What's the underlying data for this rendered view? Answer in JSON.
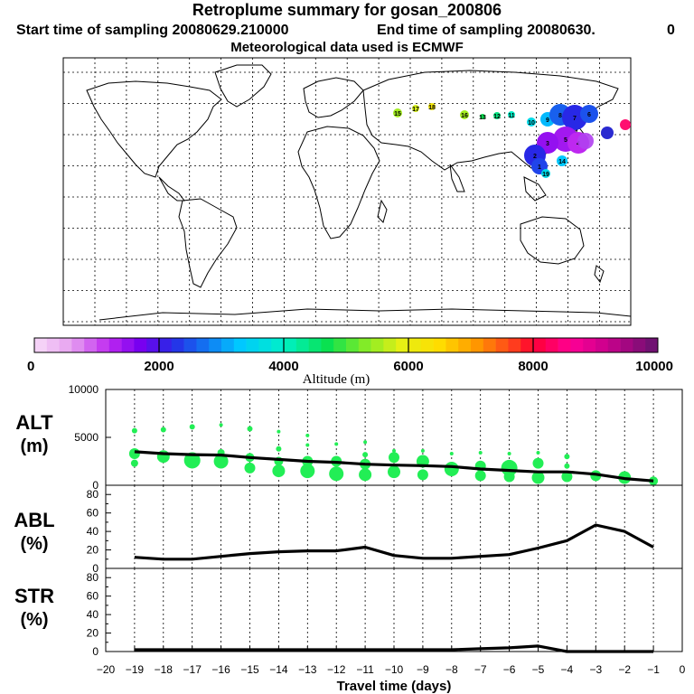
{
  "header": {
    "title": "Retroplume summary for gosan_200806",
    "start": "Start time of sampling 20080629.210000",
    "end": "End time of sampling 20080630.",
    "end_suffix": "0",
    "met": "Meteorological data used is ECMWF"
  },
  "colors": {
    "line": "#000000",
    "bubble": "#22ee55"
  },
  "map": {
    "plume_labels": [
      "15",
      "17",
      "18",
      "16",
      "13",
      "12",
      "11",
      "10",
      "9",
      "8",
      "7",
      "6",
      "5",
      "4",
      "3",
      "2",
      "1",
      "19",
      "14"
    ],
    "colorbar": {
      "label": "Altitude (m)",
      "ticks": [
        "0",
        "2000",
        "4000",
        "6000",
        "8000",
        "10000"
      ],
      "range": [
        0,
        10000
      ],
      "segments": 50
    }
  },
  "chart_data": [
    {
      "type": "line",
      "panel": "ALT",
      "ylabel_line1": "ALT",
      "ylabel_line2": "(m)",
      "ylim": [
        0,
        10000
      ],
      "yticks": [
        "10000",
        "5000",
        "0"
      ],
      "x": [
        -19,
        -18,
        -17,
        -16,
        -15,
        -14,
        -13,
        -12,
        -11,
        -10,
        -9,
        -8,
        -7,
        -6,
        -5,
        -4,
        -3,
        -2,
        -1
      ],
      "series": [
        {
          "name": "mean altitude",
          "values": [
            3500,
            3300,
            3200,
            3150,
            2900,
            2700,
            2500,
            2400,
            2200,
            2100,
            2050,
            1950,
            1700,
            1550,
            1400,
            1400,
            1150,
            700,
            450
          ]
        }
      ],
      "bubbles": [
        {
          "x": -19,
          "y": 5700,
          "s": 3
        },
        {
          "x": -19,
          "y": 3300,
          "s": 6
        },
        {
          "x": -19,
          "y": 2300,
          "s": 4
        },
        {
          "x": -18,
          "y": 5800,
          "s": 3
        },
        {
          "x": -18,
          "y": 3000,
          "s": 7
        },
        {
          "x": -17,
          "y": 6100,
          "s": 3
        },
        {
          "x": -17,
          "y": 2600,
          "s": 9
        },
        {
          "x": -16,
          "y": 6300,
          "s": 2
        },
        {
          "x": -16,
          "y": 3400,
          "s": 4
        },
        {
          "x": -16,
          "y": 2500,
          "s": 8
        },
        {
          "x": -15,
          "y": 5900,
          "s": 3
        },
        {
          "x": -15,
          "y": 2900,
          "s": 5
        },
        {
          "x": -15,
          "y": 1800,
          "s": 6
        },
        {
          "x": -14,
          "y": 5600,
          "s": 2
        },
        {
          "x": -14,
          "y": 3800,
          "s": 3
        },
        {
          "x": -14,
          "y": 2500,
          "s": 5
        },
        {
          "x": -14,
          "y": 1500,
          "s": 7
        },
        {
          "x": -13,
          "y": 5200,
          "s": 2
        },
        {
          "x": -13,
          "y": 4200,
          "s": 2
        },
        {
          "x": -13,
          "y": 2500,
          "s": 6
        },
        {
          "x": -13,
          "y": 1500,
          "s": 8
        },
        {
          "x": -12,
          "y": 4300,
          "s": 2
        },
        {
          "x": -12,
          "y": 2500,
          "s": 6
        },
        {
          "x": -12,
          "y": 1200,
          "s": 8
        },
        {
          "x": -11,
          "y": 4500,
          "s": 2
        },
        {
          "x": -11,
          "y": 3200,
          "s": 3
        },
        {
          "x": -11,
          "y": 2200,
          "s": 6
        },
        {
          "x": -11,
          "y": 1100,
          "s": 7
        },
        {
          "x": -10,
          "y": 3600,
          "s": 2
        },
        {
          "x": -10,
          "y": 2900,
          "s": 6
        },
        {
          "x": -10,
          "y": 1400,
          "s": 7
        },
        {
          "x": -9,
          "y": 3600,
          "s": 2
        },
        {
          "x": -9,
          "y": 2500,
          "s": 7
        },
        {
          "x": -9,
          "y": 1100,
          "s": 6
        },
        {
          "x": -8,
          "y": 3300,
          "s": 2
        },
        {
          "x": -8,
          "y": 1700,
          "s": 8
        },
        {
          "x": -7,
          "y": 3400,
          "s": 2
        },
        {
          "x": -7,
          "y": 2000,
          "s": 6
        },
        {
          "x": -7,
          "y": 1000,
          "s": 6
        },
        {
          "x": -6,
          "y": 3300,
          "s": 2
        },
        {
          "x": -6,
          "y": 1800,
          "s": 9
        },
        {
          "x": -6,
          "y": 900,
          "s": 6
        },
        {
          "x": -5,
          "y": 3400,
          "s": 2
        },
        {
          "x": -5,
          "y": 2300,
          "s": 6
        },
        {
          "x": -5,
          "y": 800,
          "s": 7
        },
        {
          "x": -4,
          "y": 3000,
          "s": 3
        },
        {
          "x": -4,
          "y": 2000,
          "s": 3
        },
        {
          "x": -4,
          "y": 900,
          "s": 6
        },
        {
          "x": -3,
          "y": 1000,
          "s": 6
        },
        {
          "x": -2,
          "y": 800,
          "s": 7
        },
        {
          "x": -1,
          "y": 450,
          "s": 5
        }
      ]
    },
    {
      "type": "line",
      "panel": "ABL",
      "ylabel_line1": "ABL",
      "ylabel_line2": "(%)",
      "ylim": [
        0,
        90
      ],
      "yticks": [
        "80",
        "60",
        "40",
        "20",
        "0"
      ],
      "x": [
        -19,
        -18,
        -17,
        -16,
        -15,
        -14,
        -13,
        -12,
        -11,
        -10,
        -9,
        -8,
        -7,
        -6,
        -5,
        -4,
        -3,
        -2,
        -1
      ],
      "series": [
        {
          "name": "ABL fraction",
          "values": [
            12,
            10,
            10,
            13,
            16,
            18,
            19,
            19,
            23,
            14,
            11,
            11,
            13,
            15,
            22,
            30,
            47,
            40,
            23
          ]
        }
      ]
    },
    {
      "type": "line",
      "panel": "STR",
      "ylabel_line1": "STR",
      "ylabel_line2": "(%)",
      "ylim": [
        0,
        90
      ],
      "yticks": [
        "80",
        "60",
        "40",
        "20",
        "0"
      ],
      "x": [
        -19,
        -18,
        -17,
        -16,
        -15,
        -14,
        -13,
        -12,
        -11,
        -10,
        -9,
        -8,
        -7,
        -6,
        -5,
        -4,
        -3,
        -2,
        -1
      ],
      "series": [
        {
          "name": "stratospheric fraction",
          "values": [
            2,
            2,
            2,
            2,
            2,
            2,
            2,
            2,
            2,
            2,
            2,
            2,
            3,
            4,
            6,
            0,
            0,
            0,
            0
          ]
        }
      ]
    }
  ],
  "xaxis": {
    "label": "Travel time (days)",
    "xlim": [
      -20,
      0
    ],
    "ticks": [
      "−20",
      "−19",
      "−18",
      "−17",
      "−16",
      "−15",
      "−14",
      "−13",
      "−12",
      "−11",
      "−10",
      "−9",
      "−8",
      "−7",
      "−6",
      "−5",
      "−4",
      "−3",
      "−2",
      "−1",
      "0"
    ]
  }
}
